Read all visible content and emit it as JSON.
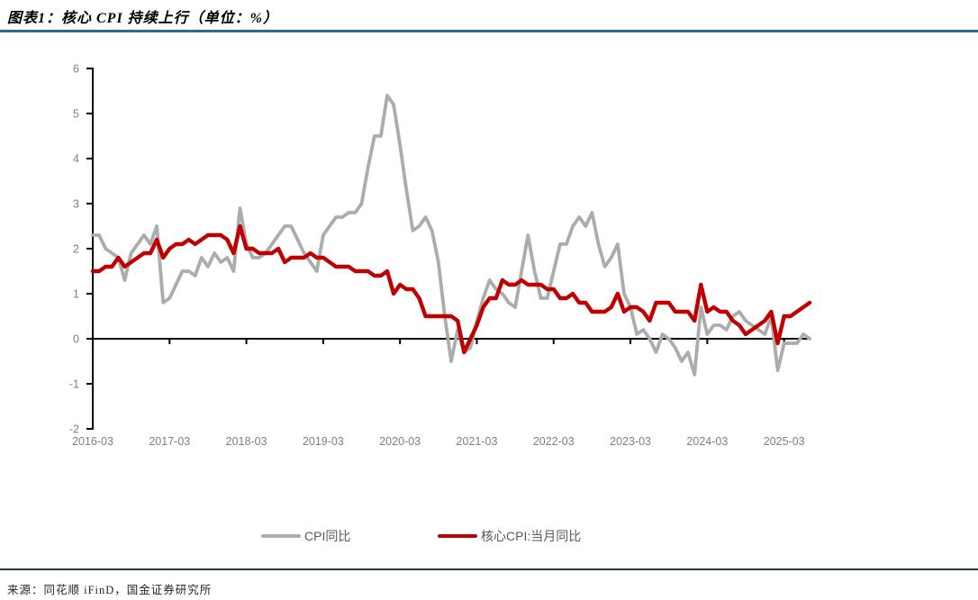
{
  "title": "图表1：核心 CPI 持续上行（单位：%）",
  "source": "来源：同花顺 iFinD，国金证券研究所",
  "legend": [
    {
      "label": "CPI同比",
      "color": "#ACACAC"
    },
    {
      "label": "核心CPI:当月同比",
      "color": "#C00000"
    }
  ],
  "chart_data": {
    "type": "line",
    "title": "图表1：核心 CPI 持续上行（单位：%）",
    "xlabel": "",
    "ylabel": "",
    "unit": "%",
    "ylim": [
      -2,
      6
    ],
    "y_ticks": [
      6,
      5,
      4,
      3,
      2,
      1,
      0,
      -1,
      -2
    ],
    "x_tick_labels": [
      "2016-03",
      "2017-03",
      "2018-03",
      "2019-03",
      "2020-03",
      "2021-03",
      "2022-03",
      "2023-03",
      "2024-03",
      "2025-03"
    ],
    "grid": false,
    "legend_position": "bottom",
    "x": [
      "2016-03",
      "2016-04",
      "2016-05",
      "2016-06",
      "2016-07",
      "2016-08",
      "2016-09",
      "2016-10",
      "2016-11",
      "2016-12",
      "2017-01",
      "2017-02",
      "2017-03",
      "2017-04",
      "2017-05",
      "2017-06",
      "2017-07",
      "2017-08",
      "2017-09",
      "2017-10",
      "2017-11",
      "2017-12",
      "2018-01",
      "2018-02",
      "2018-03",
      "2018-04",
      "2018-05",
      "2018-06",
      "2018-07",
      "2018-08",
      "2018-09",
      "2018-10",
      "2018-11",
      "2018-12",
      "2019-01",
      "2019-02",
      "2019-03",
      "2019-04",
      "2019-05",
      "2019-06",
      "2019-07",
      "2019-08",
      "2019-09",
      "2019-10",
      "2019-11",
      "2019-12",
      "2020-01",
      "2020-02",
      "2020-03",
      "2020-04",
      "2020-05",
      "2020-06",
      "2020-07",
      "2020-08",
      "2020-09",
      "2020-10",
      "2020-11",
      "2020-12",
      "2021-01",
      "2021-02",
      "2021-03",
      "2021-04",
      "2021-05",
      "2021-06",
      "2021-07",
      "2021-08",
      "2021-09",
      "2021-10",
      "2021-11",
      "2021-12",
      "2022-01",
      "2022-02",
      "2022-03",
      "2022-04",
      "2022-05",
      "2022-06",
      "2022-07",
      "2022-08",
      "2022-09",
      "2022-10",
      "2022-11",
      "2022-12",
      "2023-01",
      "2023-02",
      "2023-03",
      "2023-04",
      "2023-05",
      "2023-06",
      "2023-07",
      "2023-08",
      "2023-09",
      "2023-10",
      "2023-11",
      "2023-12",
      "2024-01",
      "2024-02",
      "2024-03",
      "2024-04",
      "2024-05",
      "2024-06",
      "2024-07",
      "2024-08",
      "2024-09",
      "2024-10",
      "2024-11",
      "2024-12",
      "2025-01",
      "2025-02",
      "2025-03",
      "2025-04",
      "2025-05",
      "2025-06",
      "2025-07"
    ],
    "series": [
      {
        "name": "CPI同比",
        "color": "#ACACAC",
        "values": [
          2.3,
          2.3,
          2.0,
          1.9,
          1.8,
          1.3,
          1.9,
          2.1,
          2.3,
          2.1,
          2.5,
          0.8,
          0.9,
          1.2,
          1.5,
          1.5,
          1.4,
          1.8,
          1.6,
          1.9,
          1.7,
          1.8,
          1.5,
          2.9,
          2.1,
          1.8,
          1.8,
          1.9,
          2.1,
          2.3,
          2.5,
          2.5,
          2.2,
          1.9,
          1.7,
          1.5,
          2.3,
          2.5,
          2.7,
          2.7,
          2.8,
          2.8,
          3.0,
          3.8,
          4.5,
          4.5,
          5.4,
          5.2,
          4.3,
          3.3,
          2.4,
          2.5,
          2.7,
          2.4,
          1.7,
          0.5,
          -0.5,
          0.2,
          -0.3,
          -0.2,
          0.4,
          0.9,
          1.3,
          1.1,
          1.0,
          0.8,
          0.7,
          1.5,
          2.3,
          1.5,
          0.9,
          0.9,
          1.5,
          2.1,
          2.1,
          2.5,
          2.7,
          2.5,
          2.8,
          2.1,
          1.6,
          1.8,
          2.1,
          1.0,
          0.7,
          0.1,
          0.2,
          0.0,
          -0.3,
          0.1,
          0.0,
          -0.2,
          -0.5,
          -0.3,
          -0.8,
          0.7,
          0.1,
          0.3,
          0.3,
          0.2,
          0.5,
          0.6,
          0.4,
          0.3,
          0.2,
          0.1,
          0.5,
          -0.7,
          -0.1,
          -0.1,
          -0.1,
          0.1,
          0.0
        ]
      },
      {
        "name": "核心CPI:当月同比",
        "color": "#C00000",
        "values": [
          1.5,
          1.5,
          1.6,
          1.6,
          1.8,
          1.6,
          1.7,
          1.8,
          1.9,
          1.9,
          2.2,
          1.8,
          2.0,
          2.1,
          2.1,
          2.2,
          2.1,
          2.2,
          2.3,
          2.3,
          2.3,
          2.2,
          1.9,
          2.5,
          2.0,
          2.0,
          1.9,
          1.9,
          1.9,
          2.0,
          1.7,
          1.8,
          1.8,
          1.8,
          1.9,
          1.8,
          1.8,
          1.7,
          1.6,
          1.6,
          1.6,
          1.5,
          1.5,
          1.5,
          1.4,
          1.4,
          1.5,
          1.0,
          1.2,
          1.1,
          1.1,
          0.9,
          0.5,
          0.5,
          0.5,
          0.5,
          0.5,
          0.4,
          -0.3,
          0.0,
          0.3,
          0.7,
          0.9,
          0.9,
          1.3,
          1.2,
          1.2,
          1.3,
          1.2,
          1.2,
          1.2,
          1.1,
          1.1,
          0.9,
          0.9,
          1.0,
          0.8,
          0.8,
          0.6,
          0.6,
          0.6,
          0.7,
          1.0,
          0.6,
          0.7,
          0.7,
          0.6,
          0.4,
          0.8,
          0.8,
          0.8,
          0.6,
          0.6,
          0.6,
          0.4,
          1.2,
          0.6,
          0.7,
          0.6,
          0.6,
          0.4,
          0.3,
          0.1,
          0.2,
          0.3,
          0.4,
          0.6,
          -0.1,
          0.5,
          0.5,
          0.6,
          0.7,
          0.8
        ]
      }
    ]
  }
}
